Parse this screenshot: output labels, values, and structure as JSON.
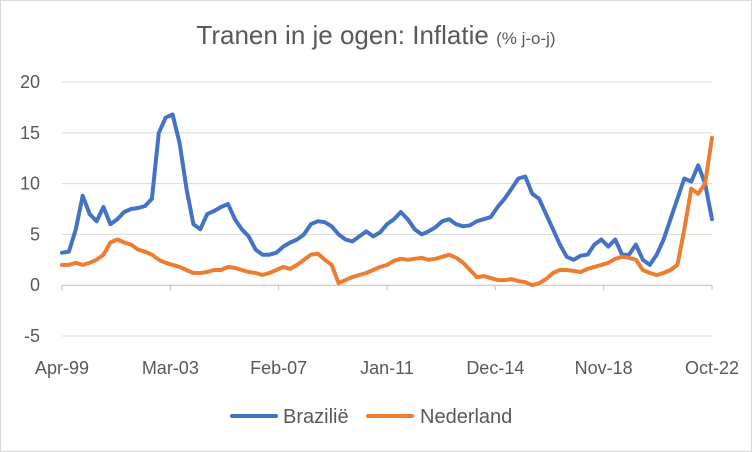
{
  "chart_data": {
    "type": "line",
    "title": "Tranen in je ogen: Inflatie",
    "subtitle": "(% j-o-j)",
    "xlabel": "",
    "ylabel": "",
    "ylim": [
      -5,
      20
    ],
    "yticks": [
      "20",
      "15",
      "10",
      "5",
      "0",
      "-5"
    ],
    "xtick_labels": [
      "Apr-99",
      "Mar-03",
      "Feb-07",
      "Jan-11",
      "Dec-14",
      "Nov-18",
      "Oct-22"
    ],
    "grid": true,
    "legend_position": "bottom",
    "x": [
      1999.25,
      1999.5,
      1999.75,
      2000.0,
      2000.25,
      2000.5,
      2000.75,
      2001.0,
      2001.25,
      2001.5,
      2001.75,
      2002.0,
      2002.25,
      2002.5,
      2002.75,
      2003.0,
      2003.25,
      2003.5,
      2003.75,
      2004.0,
      2004.25,
      2004.5,
      2004.75,
      2005.0,
      2005.25,
      2005.5,
      2005.75,
      2006.0,
      2006.25,
      2006.5,
      2006.75,
      2007.0,
      2007.25,
      2007.5,
      2007.75,
      2008.0,
      2008.25,
      2008.5,
      2008.75,
      2009.0,
      2009.25,
      2009.5,
      2009.75,
      2010.0,
      2010.25,
      2010.5,
      2010.75,
      2011.0,
      2011.25,
      2011.5,
      2011.75,
      2012.0,
      2012.25,
      2012.5,
      2012.75,
      2013.0,
      2013.25,
      2013.5,
      2013.75,
      2014.0,
      2014.25,
      2014.5,
      2014.75,
      2015.0,
      2015.25,
      2015.5,
      2015.75,
      2016.0,
      2016.25,
      2016.5,
      2016.75,
      2017.0,
      2017.25,
      2017.5,
      2017.75,
      2018.0,
      2018.25,
      2018.5,
      2018.75,
      2019.0,
      2019.25,
      2019.5,
      2019.75,
      2020.0,
      2020.25,
      2020.5,
      2020.75,
      2021.0,
      2021.25,
      2021.5,
      2021.75,
      2022.0,
      2022.25,
      2022.5,
      2022.75
    ],
    "series": [
      {
        "name": "Brazilië",
        "color": "#4472C4",
        "values": [
          3.2,
          3.3,
          5.5,
          8.8,
          7.0,
          6.3,
          7.7,
          6.0,
          6.5,
          7.2,
          7.5,
          7.6,
          7.8,
          8.5,
          15.0,
          16.5,
          16.8,
          14.0,
          9.5,
          6.0,
          5.5,
          7.0,
          7.3,
          7.7,
          8.0,
          6.5,
          5.5,
          4.8,
          3.5,
          3.0,
          3.0,
          3.2,
          3.8,
          4.2,
          4.5,
          5.0,
          6.0,
          6.3,
          6.2,
          5.8,
          5.0,
          4.5,
          4.3,
          4.8,
          5.3,
          4.8,
          5.2,
          6.0,
          6.5,
          7.2,
          6.5,
          5.5,
          5.0,
          5.3,
          5.7,
          6.3,
          6.5,
          6.0,
          5.8,
          5.9,
          6.3,
          6.5,
          6.7,
          7.7,
          8.5,
          9.5,
          10.5,
          10.7,
          9.0,
          8.5,
          7.0,
          5.5,
          4.0,
          2.8,
          2.5,
          2.9,
          3.0,
          4.0,
          4.5,
          3.8,
          4.5,
          3.0,
          3.0,
          4.0,
          2.5,
          2.0,
          3.0,
          4.5,
          6.5,
          8.5,
          10.5,
          10.2,
          11.8,
          10.0,
          6.5
        ]
      },
      {
        "name": "Nederland",
        "color": "#ED7D31",
        "values": [
          2.0,
          2.0,
          2.2,
          2.0,
          2.2,
          2.5,
          3.0,
          4.2,
          4.5,
          4.2,
          4.0,
          3.5,
          3.3,
          3.0,
          2.5,
          2.2,
          2.0,
          1.8,
          1.5,
          1.2,
          1.2,
          1.3,
          1.5,
          1.5,
          1.8,
          1.7,
          1.5,
          1.3,
          1.2,
          1.0,
          1.2,
          1.5,
          1.8,
          1.6,
          2.0,
          2.5,
          3.0,
          3.1,
          2.5,
          2.0,
          0.2,
          0.5,
          0.8,
          1.0,
          1.2,
          1.5,
          1.8,
          2.0,
          2.4,
          2.6,
          2.5,
          2.6,
          2.7,
          2.5,
          2.6,
          2.8,
          3.0,
          2.7,
          2.2,
          1.5,
          0.8,
          0.9,
          0.7,
          0.5,
          0.5,
          0.6,
          0.4,
          0.3,
          0.0,
          0.2,
          0.6,
          1.2,
          1.5,
          1.5,
          1.4,
          1.3,
          1.6,
          1.8,
          2.0,
          2.2,
          2.6,
          2.8,
          2.7,
          2.5,
          1.5,
          1.2,
          1.0,
          1.2,
          1.5,
          2.0,
          5.5,
          9.5,
          9.0,
          10.0,
          14.5
        ]
      }
    ]
  }
}
